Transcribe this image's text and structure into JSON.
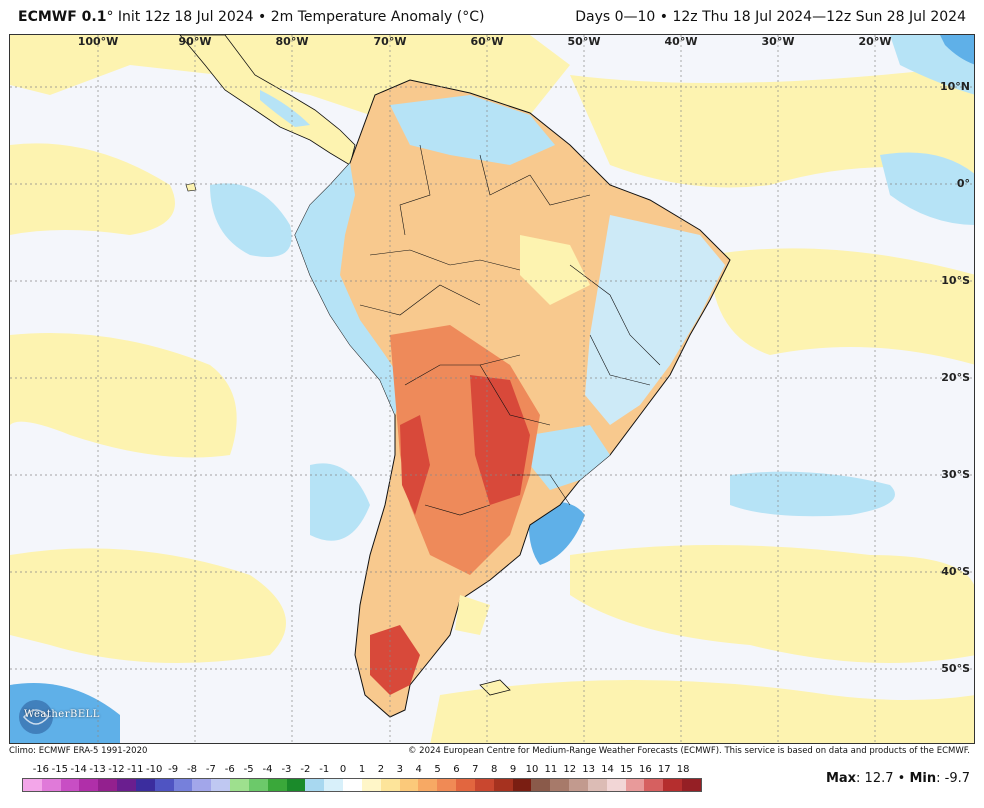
{
  "header": {
    "model": "ECMWF 0.1",
    "degree": "°",
    "init": " Init 12z 18 Jul 2024 • 2m Temperature Anomaly (°C)",
    "valid": "Days 0—10 • 12z Thu 18 Jul 2024—12z Sun 28 Jul 2024"
  },
  "map": {
    "lon_labels": [
      "100°W",
      "90°W",
      "80°W",
      "70°W",
      "60°W",
      "50°W",
      "40°W",
      "30°W",
      "20°W"
    ],
    "lat_labels": [
      "10°N",
      "0°",
      "10°S",
      "20°S",
      "30°S",
      "40°S",
      "50°S"
    ],
    "logo_text": "WeatherBELL",
    "colors": {
      "ocean_neutral": "#f4f6fb",
      "light_warm": "#fdf3b0",
      "warm": "#f8c98e",
      "hot": "#ee8a5a",
      "very_hot": "#d8493a",
      "cool": "#b6e3f6",
      "cold": "#5fb0e8",
      "land_border": "#111111"
    }
  },
  "credits": {
    "climo": "Climo: ECMWF ERA-5 1991-2020",
    "copyright": "© 2024 European Centre for Medium-Range Weather Forecasts (ECMWF). This service is based on data and products of the ECMWF."
  },
  "colorbar": {
    "labels": [
      "-16",
      "-15",
      "-14",
      "-13",
      "-12",
      "-11",
      "-10",
      "-9",
      "-8",
      "-7",
      "-6",
      "-5",
      "-4",
      "-3",
      "-2",
      "-1",
      "0",
      "1",
      "2",
      "3",
      "4",
      "5",
      "6",
      "7",
      "8",
      "9",
      "10",
      "11",
      "12",
      "13",
      "14",
      "15",
      "16",
      "17",
      "18"
    ],
    "colors": [
      "#f3a6e9",
      "#e07ad9",
      "#c84ec4",
      "#b02fa9",
      "#93208e",
      "#6a1e8f",
      "#3b2d9e",
      "#4f54c2",
      "#7680db",
      "#a2a6ea",
      "#bfc8f2",
      "#9ee08e",
      "#6cc96a",
      "#3aa83a",
      "#1a8a2a",
      "#a8d8f0",
      "#d8f0fa",
      "#ffffff",
      "#fff6c8",
      "#fde49a",
      "#fbc97a",
      "#f7a964",
      "#f08a55",
      "#e2663f",
      "#c9472f",
      "#a6321f",
      "#7a1e12",
      "#8a5a4a",
      "#a77a6a",
      "#c29a8e",
      "#dcbcb5",
      "#f2d6d6",
      "#e89a9a",
      "#d66060",
      "#b52e2e",
      "#951f25"
    ]
  },
  "stats": {
    "max_label": "Max",
    "max_value": ": 12.7",
    "sep": " • ",
    "min_label": "Min",
    "min_value": ": -9.7"
  }
}
